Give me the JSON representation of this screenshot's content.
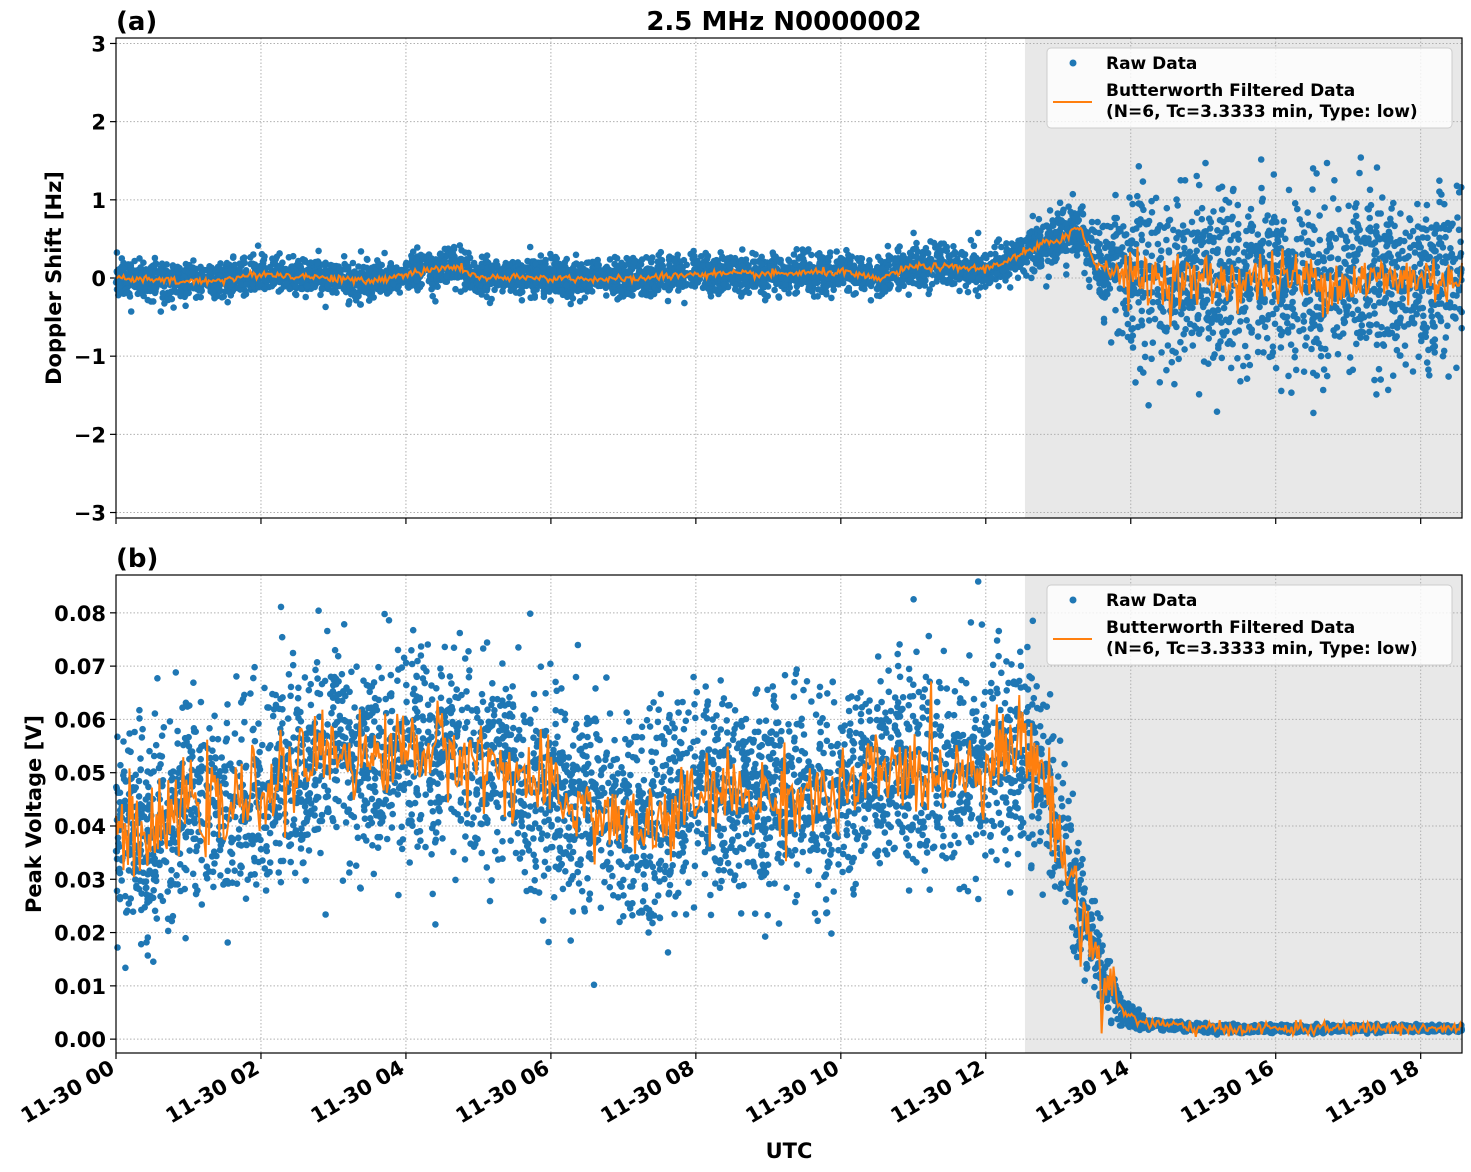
{
  "chart_data": [
    {
      "type": "scatter+line",
      "panel_label": "(a)",
      "title": "2.5 MHz N0000002",
      "xlabel": "",
      "ylabel": "Doppler Shift [Hz]",
      "xlim_hours_utc": [
        0,
        18.57
      ],
      "ylim": [
        -3.07,
        3.07
      ],
      "yticks": [
        "−3",
        "−2",
        "−1",
        "0",
        "1",
        "2",
        "3"
      ],
      "ytick_values": [
        -3,
        -2,
        -1,
        0,
        1,
        2,
        3
      ],
      "grid": true,
      "legend_placement": "top-right",
      "shaded_region_hours": [
        12.54,
        18.57
      ],
      "series": [
        {
          "name": "Raw Data",
          "kind": "points",
          "color": "#1f77b4",
          "approx_spread_std": [
            [
              0,
              0.12
            ],
            [
              12.5,
              0.12
            ],
            [
              12.6,
              0.15
            ],
            [
              13.5,
              0.2
            ],
            [
              13.9,
              0.55
            ],
            [
              18.57,
              0.55
            ]
          ]
        },
        {
          "name": "Butterworth Filtered Data\n(N=6, Tc=3.3333 min, Type: low)",
          "kind": "line",
          "color": "#ff7f0e",
          "x_hours": [
            0,
            1,
            1.5,
            2,
            3,
            3.5,
            4,
            4.7,
            5,
            6,
            7,
            8,
            9,
            10,
            10.5,
            11,
            12,
            12.5,
            13,
            13.3,
            13.5,
            14,
            15,
            16,
            17,
            18,
            18.57
          ],
          "y": [
            0,
            -0.05,
            -0.02,
            0.05,
            0,
            -0.05,
            0.05,
            0.15,
            0,
            0,
            -0.02,
            0.05,
            0.05,
            0.08,
            -0.02,
            0.15,
            0.12,
            0.3,
            0.5,
            0.65,
            0.2,
            0,
            -0.05,
            0,
            -0.05,
            0,
            0
          ]
        }
      ]
    },
    {
      "type": "scatter+line",
      "panel_label": "(b)",
      "title": "",
      "xlabel": "UTC",
      "ylabel": "Peak Voltage [V]",
      "xlim_hours_utc": [
        0,
        18.57
      ],
      "ylim": [
        -0.0026,
        0.0871
      ],
      "yticks": [
        "0.00",
        "0.01",
        "0.02",
        "0.03",
        "0.04",
        "0.05",
        "0.06",
        "0.07",
        "0.08"
      ],
      "ytick_values": [
        0,
        0.01,
        0.02,
        0.03,
        0.04,
        0.05,
        0.06,
        0.07,
        0.08
      ],
      "xticks": [
        "11-30 00",
        "11-30 02",
        "11-30 04",
        "11-30 06",
        "11-30 08",
        "11-30 10",
        "11-30 12",
        "11-30 14",
        "11-30 16",
        "11-30 18"
      ],
      "xtick_hours": [
        0,
        2,
        4,
        6,
        8,
        10,
        12,
        14,
        16,
        18
      ],
      "grid": true,
      "legend_placement": "top-right",
      "shaded_region_hours": [
        12.54,
        18.57
      ],
      "series": [
        {
          "name": "Raw Data",
          "kind": "points",
          "color": "#1f77b4",
          "approx_spread_std": [
            [
              0,
              0.01
            ],
            [
              12.7,
              0.009
            ],
            [
              13.3,
              0.006
            ],
            [
              13.8,
              0.002
            ],
            [
              14.2,
              0.0004
            ],
            [
              18.57,
              0.0003
            ]
          ]
        },
        {
          "name": "Butterworth Filtered Data\n(N=6, Tc=3.3333 min, Type: low)",
          "kind": "line",
          "color": "#ff7f0e",
          "x_hours": [
            0,
            0.5,
            1,
            1.5,
            2,
            2.5,
            3,
            3.5,
            4,
            4.5,
            5,
            5.5,
            6,
            6.5,
            7,
            7.5,
            8,
            8.5,
            9,
            9.5,
            10,
            10.5,
            11,
            11.5,
            12,
            12.5,
            12.8,
            13,
            13.3,
            13.6,
            13.9,
            14.2,
            15,
            16,
            17,
            18,
            18.57
          ],
          "y": [
            0.04,
            0.037,
            0.045,
            0.042,
            0.047,
            0.05,
            0.055,
            0.052,
            0.055,
            0.054,
            0.052,
            0.05,
            0.046,
            0.043,
            0.04,
            0.04,
            0.045,
            0.046,
            0.045,
            0.046,
            0.045,
            0.05,
            0.05,
            0.05,
            0.052,
            0.056,
            0.05,
            0.038,
            0.025,
            0.012,
            0.005,
            0.003,
            0.002,
            0.002,
            0.002,
            0.002,
            0.002
          ]
        }
      ]
    }
  ],
  "legend": {
    "raw": "Raw Data",
    "filtered_line1": "Butterworth Filtered Data",
    "filtered_line2": "(N=6, Tc=3.3333 min, Type: low)"
  },
  "colors": {
    "raw": "#1f77b4",
    "filtered": "#ff7f0e",
    "shade": "#e8e8e8"
  }
}
